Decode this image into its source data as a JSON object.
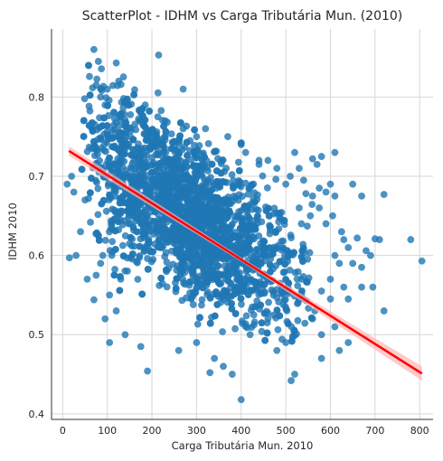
{
  "chart_data": {
    "type": "scatter",
    "title": "ScatterPlot - IDHM vs Carga Tributária Mun. (2010)",
    "xlabel": "Carga Tributária Mun. 2010",
    "ylabel": "IDHM 2010",
    "xlim": [
      -25,
      830
    ],
    "ylim": [
      0.393,
      0.886
    ],
    "x_ticks": [
      0,
      100,
      200,
      300,
      400,
      500,
      600,
      700,
      800
    ],
    "y_ticks": [
      0.4,
      0.5,
      0.6,
      0.7,
      0.8
    ],
    "grid": true,
    "legend": "none",
    "colors": {
      "points": "#1f77b4",
      "regression": "#ff0000",
      "ci_band": "#ffb3b3"
    },
    "regression": {
      "x": [
        14,
        805
      ],
      "y": [
        0.732,
        0.451
      ]
    },
    "points": [
      [
        70,
        0.86
      ],
      [
        215,
        0.853
      ],
      [
        80,
        0.845
      ],
      [
        120,
        0.843
      ],
      [
        60,
        0.826
      ],
      [
        270,
        0.81
      ],
      [
        185,
        0.79
      ],
      [
        175,
        0.78
      ],
      [
        85,
        0.8
      ],
      [
        140,
        0.795
      ],
      [
        100,
        0.81
      ],
      [
        95,
        0.79
      ],
      [
        230,
        0.77
      ],
      [
        180,
        0.765
      ],
      [
        270,
        0.76
      ],
      [
        320,
        0.76
      ],
      [
        300,
        0.75
      ],
      [
        370,
        0.75
      ],
      [
        400,
        0.74
      ],
      [
        410,
        0.73
      ],
      [
        440,
        0.72
      ],
      [
        440,
        0.715
      ],
      [
        460,
        0.72
      ],
      [
        480,
        0.71
      ],
      [
        510,
        0.7
      ],
      [
        530,
        0.71
      ],
      [
        570,
        0.715
      ],
      [
        580,
        0.725
      ],
      [
        560,
        0.722
      ],
      [
        610,
        0.73
      ],
      [
        520,
        0.73
      ],
      [
        500,
        0.69
      ],
      [
        540,
        0.695
      ],
      [
        575,
        0.685
      ],
      [
        545,
        0.678
      ],
      [
        600,
        0.69
      ],
      [
        590,
        0.68
      ],
      [
        560,
        0.675
      ],
      [
        610,
        0.675
      ],
      [
        575,
        0.66
      ],
      [
        530,
        0.66
      ],
      [
        555,
        0.65
      ],
      [
        605,
        0.65
      ],
      [
        650,
        0.69
      ],
      [
        670,
        0.675
      ],
      [
        720,
        0.677
      ],
      [
        535,
        0.64
      ],
      [
        590,
        0.64
      ],
      [
        625,
        0.63
      ],
      [
        630,
        0.62
      ],
      [
        660,
        0.622
      ],
      [
        680,
        0.606
      ],
      [
        700,
        0.621
      ],
      [
        710,
        0.62
      ],
      [
        780,
        0.62
      ],
      [
        805,
        0.593
      ],
      [
        620,
        0.59
      ],
      [
        650,
        0.59
      ],
      [
        670,
        0.585
      ],
      [
        690,
        0.6
      ],
      [
        610,
        0.6
      ],
      [
        640,
        0.61
      ],
      [
        600,
        0.57
      ],
      [
        630,
        0.56
      ],
      [
        580,
        0.555
      ],
      [
        600,
        0.545
      ],
      [
        640,
        0.545
      ],
      [
        670,
        0.56
      ],
      [
        695,
        0.56
      ],
      [
        720,
        0.53
      ],
      [
        560,
        0.52
      ],
      [
        565,
        0.53
      ],
      [
        580,
        0.5
      ],
      [
        610,
        0.51
      ],
      [
        620,
        0.48
      ],
      [
        640,
        0.49
      ],
      [
        580,
        0.47
      ],
      [
        520,
        0.45
      ],
      [
        512,
        0.442
      ],
      [
        460,
        0.52
      ],
      [
        400,
        0.418
      ],
      [
        380,
        0.45
      ],
      [
        330,
        0.452
      ],
      [
        190,
        0.454
      ],
      [
        140,
        0.5
      ],
      [
        105,
        0.49
      ],
      [
        175,
        0.485
      ],
      [
        260,
        0.48
      ],
      [
        300,
        0.49
      ],
      [
        340,
        0.47
      ],
      [
        360,
        0.46
      ],
      [
        420,
        0.5
      ],
      [
        480,
        0.48
      ],
      [
        500,
        0.49
      ],
      [
        30,
        0.6
      ],
      [
        15,
        0.597
      ],
      [
        40,
        0.63
      ],
      [
        50,
        0.67
      ],
      [
        20,
        0.7
      ],
      [
        10,
        0.69
      ],
      [
        25,
        0.68
      ],
      [
        70,
        0.544
      ],
      [
        95,
        0.52
      ],
      [
        55,
        0.57
      ],
      [
        75,
        0.575
      ],
      [
        105,
        0.55
      ],
      [
        120,
        0.53
      ],
      [
        85,
        0.59
      ],
      [
        90,
        0.6
      ],
      [
        110,
        0.6
      ]
    ]
  }
}
